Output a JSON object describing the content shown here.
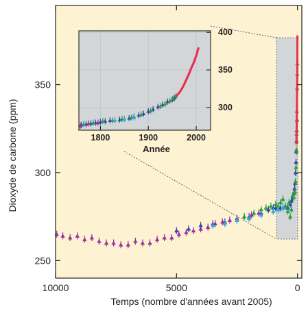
{
  "chart_data": [
    {
      "type": "scatter",
      "title": "",
      "xlabel": "Temps (nombre d'années avant 2005)",
      "ylabel": "Dioxyde de carbone (ppm)",
      "xlim": [
        10000,
        -180
      ],
      "ylim": [
        240,
        395
      ],
      "x_ticks": [
        10000,
        5000,
        0
      ],
      "y_ticks": [
        250,
        300,
        350
      ],
      "x_tick_labels": [
        "10000",
        "5000",
        "0"
      ],
      "y_tick_labels": [
        "250",
        "300",
        "350"
      ],
      "grid": false,
      "legend": "none",
      "colors": {
        "background": "#fdf2d2",
        "highlight_box": "#d3d6d8",
        "series": [
          "#9b2d9f",
          "#2f45a8",
          "#2aa03d",
          "#2dafd6",
          "#e8304f"
        ]
      },
      "series": [
        {
          "color": "#9b2d9f",
          "x": [
            9950,
            9700,
            9400,
            9100,
            8800,
            8500,
            8200,
            7900,
            7600,
            7300,
            7000,
            6700,
            6400,
            6100,
            5800,
            5500,
            5200,
            4900,
            4600,
            4300,
            4000,
            3700,
            3400,
            3100,
            2800,
            2500,
            2200,
            1900,
            1600
          ],
          "y": [
            265,
            264,
            263,
            264,
            262,
            263,
            261,
            260,
            260,
            259,
            259,
            261,
            260,
            260,
            262,
            263,
            263,
            265,
            266,
            267,
            268,
            269,
            271,
            272,
            273,
            274,
            275,
            276,
            277
          ]
        },
        {
          "color": "#2f45a8",
          "x": [
            5000,
            4500,
            4000,
            3500,
            3000,
            2500,
            2000,
            1500,
            1200,
            1000,
            900,
            800,
            700,
            600,
            500,
            400,
            300,
            250,
            200,
            150,
            120,
            100,
            80,
            60,
            50,
            40,
            30,
            20
          ],
          "y": [
            267,
            268,
            270,
            271,
            272,
            273,
            275,
            277,
            279,
            280,
            280,
            281,
            280,
            280,
            281,
            280,
            282,
            284,
            286,
            288,
            291,
            294,
            300,
            306,
            312,
            318,
            324,
            330
          ]
        },
        {
          "color": "#2aa03d",
          "x": [
            2200,
            1800,
            1500,
            1300,
            1100,
            1000,
            900,
            800,
            700,
            600,
            500,
            400,
            350,
            300,
            250,
            200,
            150,
            100,
            80,
            60,
            45,
            35,
            25,
            15,
            10,
            5
          ],
          "y": [
            275,
            277,
            279,
            280,
            281,
            278,
            282,
            281,
            283,
            285,
            281,
            278,
            283,
            275,
            279,
            287,
            286,
            289,
            295,
            303,
            313,
            322,
            335,
            348,
            356,
            362
          ]
        },
        {
          "color": "#2dafd6",
          "x": [
            3500,
            3000,
            2500,
            2000,
            1500,
            1000,
            800,
            600
          ],
          "y": [
            270,
            271,
            273,
            274,
            276,
            278,
            279,
            280
          ]
        },
        {
          "color": "#e8304f",
          "x": [
            47,
            40,
            35,
            30,
            25,
            20,
            15,
            10,
            5,
            2
          ],
          "y": [
            316,
            320,
            325,
            330,
            335,
            340,
            346,
            352,
            362,
            378
          ]
        }
      ]
    },
    {
      "type": "scatter",
      "title": "",
      "xlabel": "Année",
      "ylabel": "",
      "xlim": [
        1755,
        2030
      ],
      "ylim": [
        270,
        402
      ],
      "x_ticks": [
        1800,
        1900,
        2000
      ],
      "y_ticks": [
        300,
        350,
        400
      ],
      "x_tick_labels": [
        "1800",
        "1900",
        "2000"
      ],
      "y_tick_labels": [
        "300",
        "350",
        "400"
      ],
      "grid": true,
      "legend": "none",
      "colors": {
        "background": "#d3d6d8"
      },
      "series": [
        {
          "color": "#2f45a8",
          "x": [
            1760,
            1770,
            1780,
            1790,
            1800,
            1810,
            1820,
            1830,
            1840,
            1850,
            1860,
            1870,
            1880,
            1890,
            1900,
            1910,
            1920,
            1930,
            1940,
            1950,
            1955
          ],
          "y": [
            277,
            278,
            279,
            280,
            281,
            282,
            283,
            283,
            284,
            285,
            286,
            288,
            290,
            292,
            295,
            298,
            301,
            304,
            308,
            311,
            313
          ]
        },
        {
          "color": "#2aa03d",
          "x": [
            1765,
            1785,
            1805,
            1825,
            1845,
            1865,
            1885,
            1905,
            1925,
            1935,
            1945,
            1952,
            1958
          ],
          "y": [
            278,
            280,
            282,
            283,
            285,
            287,
            291,
            296,
            302,
            305,
            309,
            312,
            315
          ]
        },
        {
          "color": "#9b2d9f",
          "x": [
            1758,
            1775,
            1795
          ],
          "y": [
            276,
            279,
            280
          ]
        },
        {
          "color": "#2dafd6",
          "x": [
            1830,
            1850,
            1870
          ],
          "y": [
            283,
            285,
            287
          ]
        },
        {
          "color": "#e8304f",
          "x": [
            1958,
            1965,
            1970,
            1975,
            1980,
            1985,
            1990,
            1995,
            2000,
            2005
          ],
          "y": [
            315,
            320,
            325,
            331,
            338,
            345,
            353,
            360,
            369,
            380
          ]
        }
      ]
    }
  ]
}
